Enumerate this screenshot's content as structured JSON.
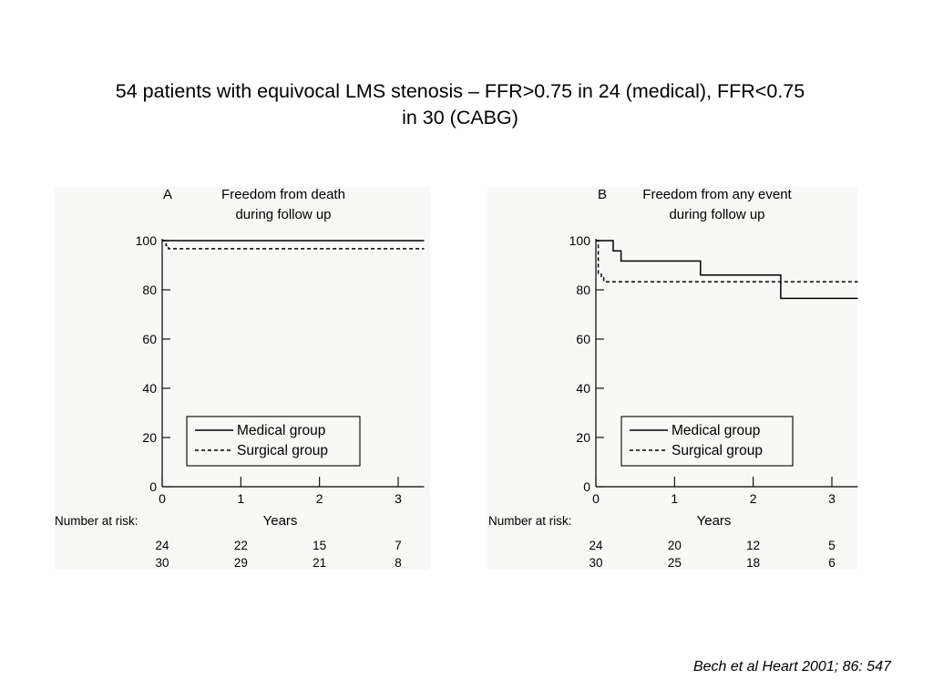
{
  "slide": {
    "title_line1": "54 patients with equivocal LMS stenosis – FFR>0.75 in 24 (medical), FFR<0.75",
    "title_line2": "in 30 (CABG)",
    "citation": "Bech et al Heart 2001; 86: 547"
  },
  "chart_data": [
    {
      "type": "line",
      "panel_letter": "A",
      "title_line1": "Freedom from death",
      "title_line2": "during follow up",
      "xlabel": "Years",
      "ylabel": "",
      "xlim": [
        0,
        3.33
      ],
      "ylim": [
        0,
        100
      ],
      "xticks": [
        0,
        1,
        2,
        3
      ],
      "yticks": [
        0,
        20,
        40,
        60,
        80,
        100
      ],
      "grid": false,
      "legend_placement": "bottom-center",
      "series": [
        {
          "name": "Medical group",
          "style": "solid",
          "color": "#000000",
          "x": [
            0,
            3.33
          ],
          "y": [
            100,
            100
          ]
        },
        {
          "name": "Surgical group",
          "style": "dashed",
          "color": "#000000",
          "x": [
            0,
            0.05,
            0.05,
            0.08,
            0.08,
            3.33
          ],
          "y": [
            100,
            100,
            98,
            98,
            96.7,
            96.7
          ]
        }
      ],
      "risk_table": {
        "label": "Number at risk:",
        "x": [
          0,
          1,
          2,
          3
        ],
        "rows": [
          [
            "24",
            "22",
            "15",
            "7"
          ],
          [
            "30",
            "29",
            "21",
            "8"
          ]
        ]
      }
    },
    {
      "type": "line",
      "panel_letter": "B",
      "title_line1": "Freedom from any event",
      "title_line2": "during follow up",
      "xlabel": "Years",
      "ylabel": "",
      "xlim": [
        0,
        3.33
      ],
      "ylim": [
        0,
        100
      ],
      "xticks": [
        0,
        1,
        2,
        3
      ],
      "yticks": [
        0,
        20,
        40,
        60,
        80,
        100
      ],
      "grid": false,
      "legend_placement": "bottom-center",
      "series": [
        {
          "name": "Medical group",
          "style": "solid",
          "color": "#000000",
          "x": [
            0,
            0.22,
            0.22,
            0.32,
            0.32,
            1.33,
            1.33,
            2.35,
            2.35,
            3.33
          ],
          "y": [
            100,
            100,
            95.8,
            95.8,
            91.7,
            91.7,
            86,
            86,
            76.5,
            76.5
          ]
        },
        {
          "name": "Surgical group",
          "style": "dashed",
          "color": "#000000",
          "x": [
            0,
            0.03,
            0.03,
            0.07,
            0.07,
            0.1,
            0.1,
            3.33
          ],
          "y": [
            100,
            100,
            86.7,
            86.7,
            85,
            85,
            83.3,
            83.3
          ]
        }
      ],
      "risk_table": {
        "label": "Number at risk:",
        "x": [
          0,
          1,
          2,
          3
        ],
        "rows": [
          [
            "24",
            "20",
            "12",
            "5"
          ],
          [
            "30",
            "25",
            "18",
            "6"
          ]
        ]
      }
    }
  ]
}
